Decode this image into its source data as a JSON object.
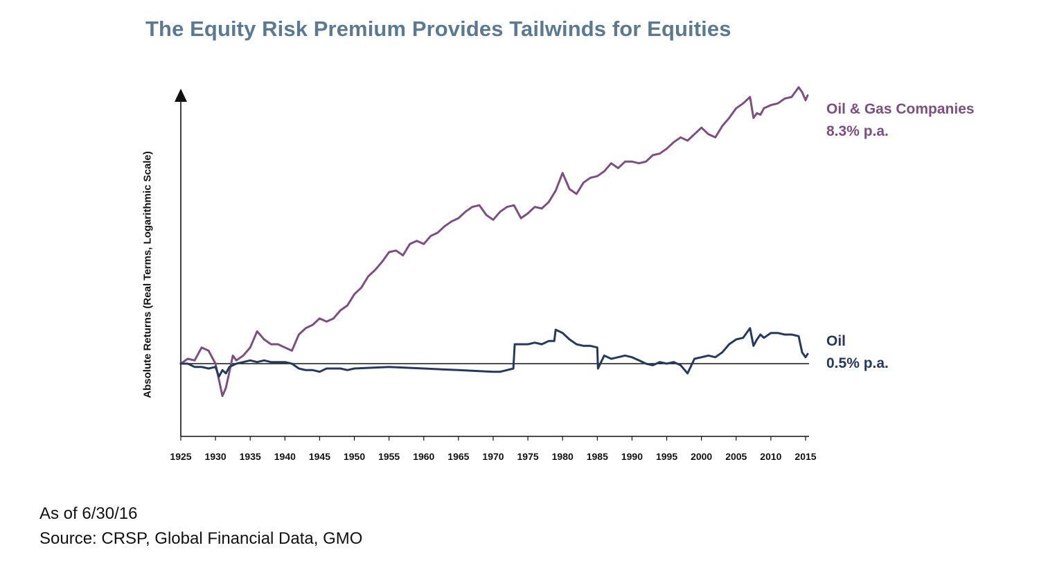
{
  "title": "The Equity Risk Premium Provides Tailwinds for Equities",
  "footer": {
    "as_of": "As of 6/30/16",
    "source": "Source: CRSP, Global Financial Data, GMO"
  },
  "colors": {
    "title": "#5b7a91",
    "oil_gas": "#7b4f7f",
    "oil": "#24395e",
    "axis": "#111111"
  },
  "chart_data": {
    "type": "line",
    "title": "The Equity Risk Premium Provides Tailwinds for Equities",
    "xlabel": "",
    "ylabel": "Absolute Returns (Real Terms, Logarithmic Scale)",
    "y_scale": "log",
    "y_ticks_shown": false,
    "grid": false,
    "legend": "direct labels at right end of lines",
    "xlim": [
      1925,
      2015.5
    ],
    "ylim": [
      -0.45,
      1.65
    ],
    "x_ticks": [
      1925,
      1930,
      1935,
      1940,
      1945,
      1950,
      1955,
      1960,
      1965,
      1970,
      1975,
      1980,
      1985,
      1990,
      1995,
      2000,
      2005,
      2010,
      2015
    ],
    "baseline_y": 0,
    "series": [
      {
        "name": "Oil & Gas Companies",
        "annotation": "8.3% p.a.",
        "color": "#7b4f7f",
        "x": [
          1925,
          1926,
          1927,
          1928,
          1929,
          1930,
          1930.5,
          1931,
          1931.5,
          1932,
          1932.5,
          1933,
          1934,
          1935,
          1936,
          1937,
          1938,
          1939,
          1940,
          1941,
          1942,
          1943,
          1944,
          1945,
          1946,
          1947,
          1948,
          1949,
          1950,
          1951,
          1952,
          1953,
          1954,
          1955,
          1956,
          1957,
          1958,
          1959,
          1960,
          1961,
          1962,
          1963,
          1964,
          1965,
          1966,
          1967,
          1968,
          1969,
          1970,
          1971,
          1972,
          1973,
          1974,
          1975,
          1976,
          1977,
          1978,
          1979,
          1980,
          1981,
          1982,
          1983,
          1984,
          1985,
          1986,
          1987,
          1988,
          1989,
          1990,
          1991,
          1992,
          1993,
          1994,
          1995,
          1996,
          1997,
          1998,
          1999,
          2000,
          2001,
          2002,
          2003,
          2004,
          2005,
          2006,
          2007,
          2007.5,
          2008,
          2008.5,
          2009,
          2010,
          2011,
          2012,
          2013,
          2014,
          2014.5,
          2015,
          2015.3
        ],
        "y": [
          0.0,
          0.03,
          0.02,
          0.1,
          0.08,
          0.0,
          -0.1,
          -0.2,
          -0.15,
          -0.05,
          0.05,
          0.02,
          0.05,
          0.1,
          0.2,
          0.15,
          0.12,
          0.12,
          0.1,
          0.08,
          0.18,
          0.22,
          0.24,
          0.28,
          0.26,
          0.28,
          0.33,
          0.36,
          0.43,
          0.47,
          0.54,
          0.58,
          0.63,
          0.69,
          0.7,
          0.67,
          0.74,
          0.76,
          0.74,
          0.79,
          0.81,
          0.85,
          0.88,
          0.9,
          0.94,
          0.97,
          0.98,
          0.92,
          0.89,
          0.94,
          0.97,
          0.98,
          0.9,
          0.93,
          0.97,
          0.96,
          1.0,
          1.07,
          1.18,
          1.08,
          1.05,
          1.12,
          1.15,
          1.16,
          1.19,
          1.24,
          1.21,
          1.25,
          1.25,
          1.24,
          1.25,
          1.29,
          1.3,
          1.33,
          1.37,
          1.4,
          1.38,
          1.42,
          1.46,
          1.42,
          1.4,
          1.47,
          1.52,
          1.58,
          1.61,
          1.65,
          1.52,
          1.55,
          1.54,
          1.58,
          1.6,
          1.61,
          1.64,
          1.65,
          1.71,
          1.68,
          1.63,
          1.66
        ]
      },
      {
        "name": "Oil",
        "annotation": "0.5% p.a.",
        "color": "#24395e",
        "x": [
          1925,
          1926,
          1927,
          1928,
          1929,
          1930,
          1930.5,
          1931,
          1931.5,
          1932,
          1933,
          1934,
          1935,
          1936,
          1937,
          1938,
          1939,
          1940,
          1941,
          1942,
          1943,
          1944,
          1945,
          1946,
          1947,
          1948,
          1949,
          1950,
          1955,
          1960,
          1965,
          1970,
          1971,
          1972,
          1972.9,
          1973.1,
          1974,
          1975,
          1976,
          1977,
          1978,
          1978.8,
          1979,
          1980,
          1981,
          1982,
          1983,
          1984,
          1985,
          1985.1,
          1986,
          1987,
          1988,
          1989,
          1990,
          1991,
          1992,
          1993,
          1994,
          1995,
          1996,
          1997,
          1998,
          1999,
          2000,
          2001,
          2002,
          2003,
          2004,
          2005,
          2006,
          2007,
          2007.5,
          2008,
          2008.5,
          2009,
          2010,
          2011,
          2012,
          2013,
          2014,
          2014.5,
          2015,
          2015.3
        ],
        "y": [
          0.0,
          0.0,
          -0.02,
          -0.02,
          -0.03,
          -0.02,
          -0.08,
          -0.04,
          -0.06,
          -0.02,
          0.0,
          0.01,
          0.02,
          0.01,
          0.02,
          0.01,
          0.01,
          0.01,
          0.0,
          -0.03,
          -0.04,
          -0.04,
          -0.05,
          -0.03,
          -0.03,
          -0.03,
          -0.04,
          -0.03,
          -0.02,
          -0.03,
          -0.04,
          -0.05,
          -0.05,
          -0.04,
          -0.03,
          0.12,
          0.12,
          0.12,
          0.13,
          0.12,
          0.14,
          0.14,
          0.21,
          0.19,
          0.15,
          0.12,
          0.11,
          0.11,
          0.1,
          -0.03,
          0.05,
          0.03,
          0.04,
          0.05,
          0.04,
          0.02,
          0.0,
          -0.01,
          0.01,
          0.0,
          0.01,
          -0.01,
          -0.06,
          0.03,
          0.04,
          0.05,
          0.04,
          0.07,
          0.12,
          0.15,
          0.16,
          0.22,
          0.11,
          0.15,
          0.18,
          0.16,
          0.19,
          0.19,
          0.18,
          0.18,
          0.17,
          0.07,
          0.04,
          0.06
        ]
      }
    ]
  }
}
